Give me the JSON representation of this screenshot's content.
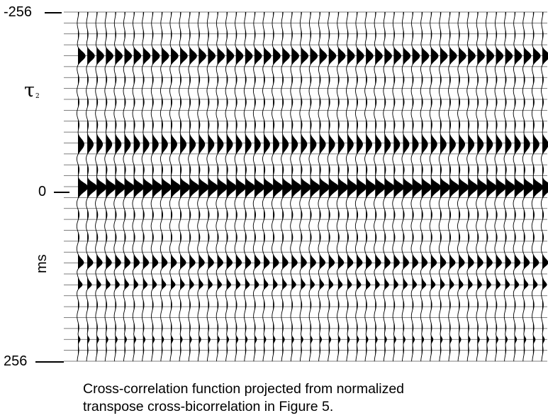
{
  "chart_data": {
    "type": "seismic-wiggle",
    "ylabel_symbol": "τ",
    "ylabel_subscript": "2",
    "ylabel_unit": "ms",
    "ylim": [
      -256,
      256
    ],
    "y_ticks": [
      {
        "value": -256,
        "label": "-256"
      },
      {
        "value": 0,
        "label": "0"
      },
      {
        "value": 256,
        "label": "256"
      }
    ],
    "trace_count": 51,
    "time_step_ms": 16,
    "wavelets": [
      {
        "time_ms": -192,
        "amplitude": 0.65,
        "width_ms": 9
      },
      {
        "time_ms": -64,
        "amplitude": 0.55,
        "width_ms": 11
      },
      {
        "time_ms": 0,
        "amplitude": 1.0,
        "width_ms": 9
      },
      {
        "time_ms": 112,
        "amplitude": 0.5,
        "width_ms": 7
      },
      {
        "time_ms": 144,
        "amplitude": 0.35,
        "width_ms": 5
      },
      {
        "time_ms": 224,
        "amplitude": 0.3,
        "width_ms": 5
      }
    ],
    "noise_amplitude": 0.12,
    "fill_color": "#000000",
    "line_color": "#000000",
    "grid": true
  },
  "caption": {
    "line1": "Cross-correlation function projected from normalized",
    "line2": "transpose cross-bicorrelation in Figure 5."
  }
}
